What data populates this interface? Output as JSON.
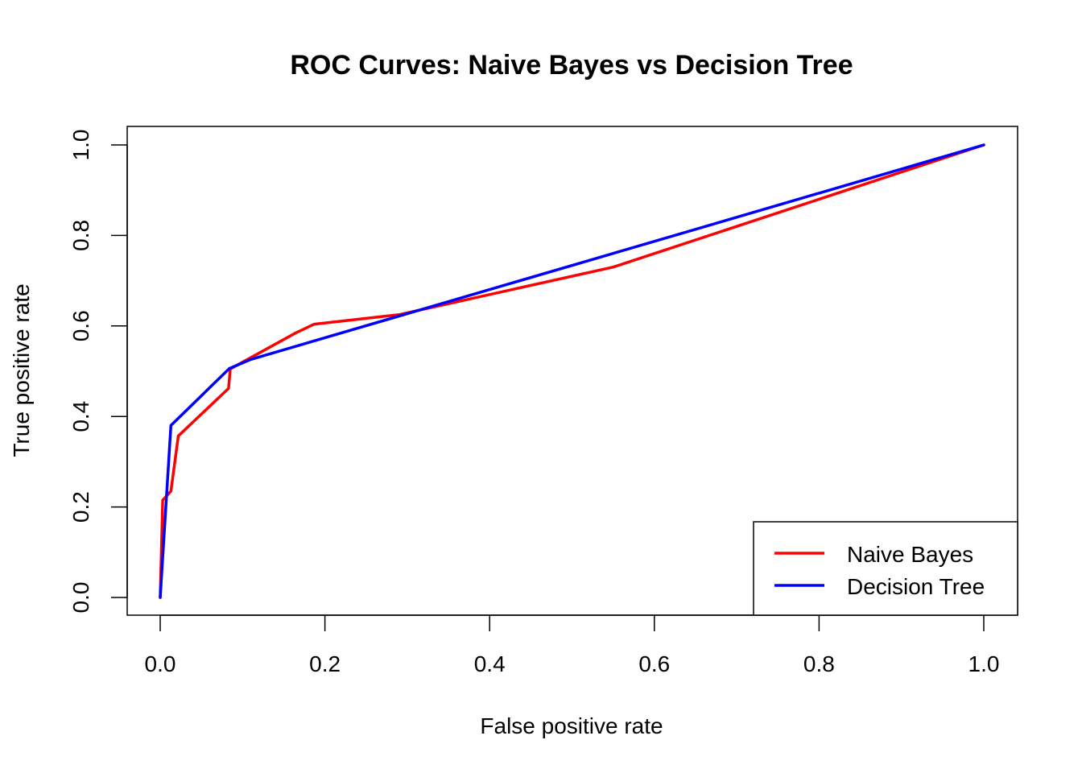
{
  "chart_data": {
    "type": "line",
    "title": "ROC Curves: Naive Bayes vs Decision Tree",
    "xlabel": "False positive rate",
    "ylabel": "True positive rate",
    "xlim": [
      0,
      1
    ],
    "ylim": [
      0,
      1
    ],
    "xticks": [
      "0.0",
      "0.2",
      "0.4",
      "0.6",
      "0.8",
      "1.0"
    ],
    "yticks": [
      "0.0",
      "0.2",
      "0.4",
      "0.6",
      "0.8",
      "1.0"
    ],
    "xtick_values": [
      0,
      0.2,
      0.4,
      0.6,
      0.8,
      1.0
    ],
    "ytick_values": [
      0,
      0.2,
      0.4,
      0.6,
      0.8,
      1.0
    ],
    "grid": false,
    "legend_position": "bottom-right",
    "series": [
      {
        "name": "Naive Bayes",
        "color": "#ff0000",
        "x": [
          0,
          0.003,
          0.013,
          0.022,
          0.083,
          0.085,
          0.165,
          0.187,
          0.29,
          0.55,
          1.0
        ],
        "y": [
          0,
          0.215,
          0.235,
          0.357,
          0.462,
          0.505,
          0.585,
          0.604,
          0.625,
          0.73,
          1.0
        ]
      },
      {
        "name": "Decision Tree",
        "color": "#0000ff",
        "x": [
          0,
          0.013,
          0.084,
          0.11,
          1.0
        ],
        "y": [
          0,
          0.38,
          0.506,
          0.526,
          1.0
        ]
      }
    ]
  }
}
